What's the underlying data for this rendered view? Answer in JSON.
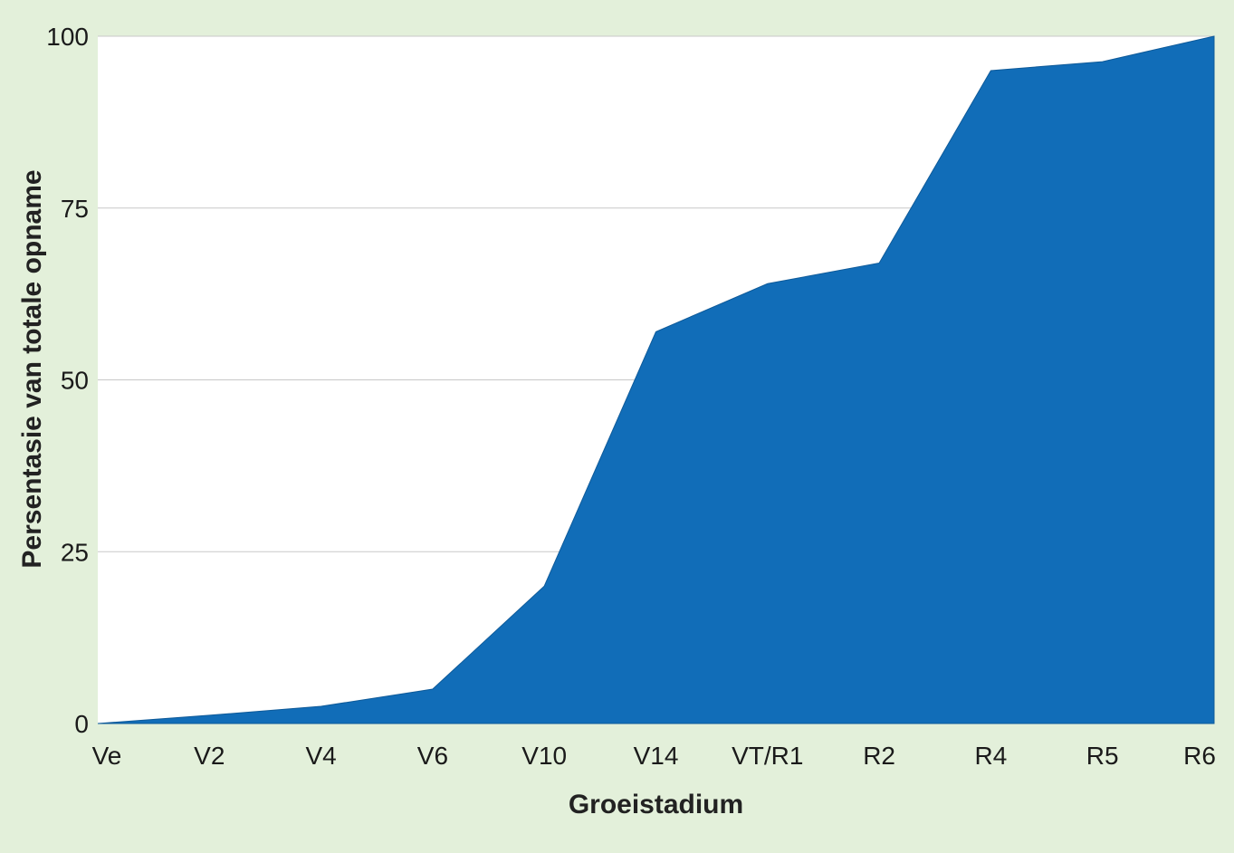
{
  "chart_data": {
    "type": "area",
    "categories": [
      "Ve",
      "V2",
      "V4",
      "V6",
      "V10",
      "V14",
      "VT/R1",
      "R2",
      "R4",
      "R5",
      "R6"
    ],
    "series": [
      {
        "values": [
          0,
          1.2,
          2.5,
          5,
          20,
          57,
          64,
          67,
          95,
          96.3,
          100
        ]
      }
    ],
    "xlabel": "Groeistadium",
    "ylabel": "Persentasie van totale opname",
    "ylim": [
      0,
      100
    ],
    "yticks": [
      0,
      25,
      50,
      75,
      100
    ],
    "grid": true,
    "legend": "none",
    "colors": {
      "fill": "#116db8",
      "background": "#e3f0da",
      "plot_area": "#ffffff",
      "grid": "#c8c8c8"
    }
  }
}
